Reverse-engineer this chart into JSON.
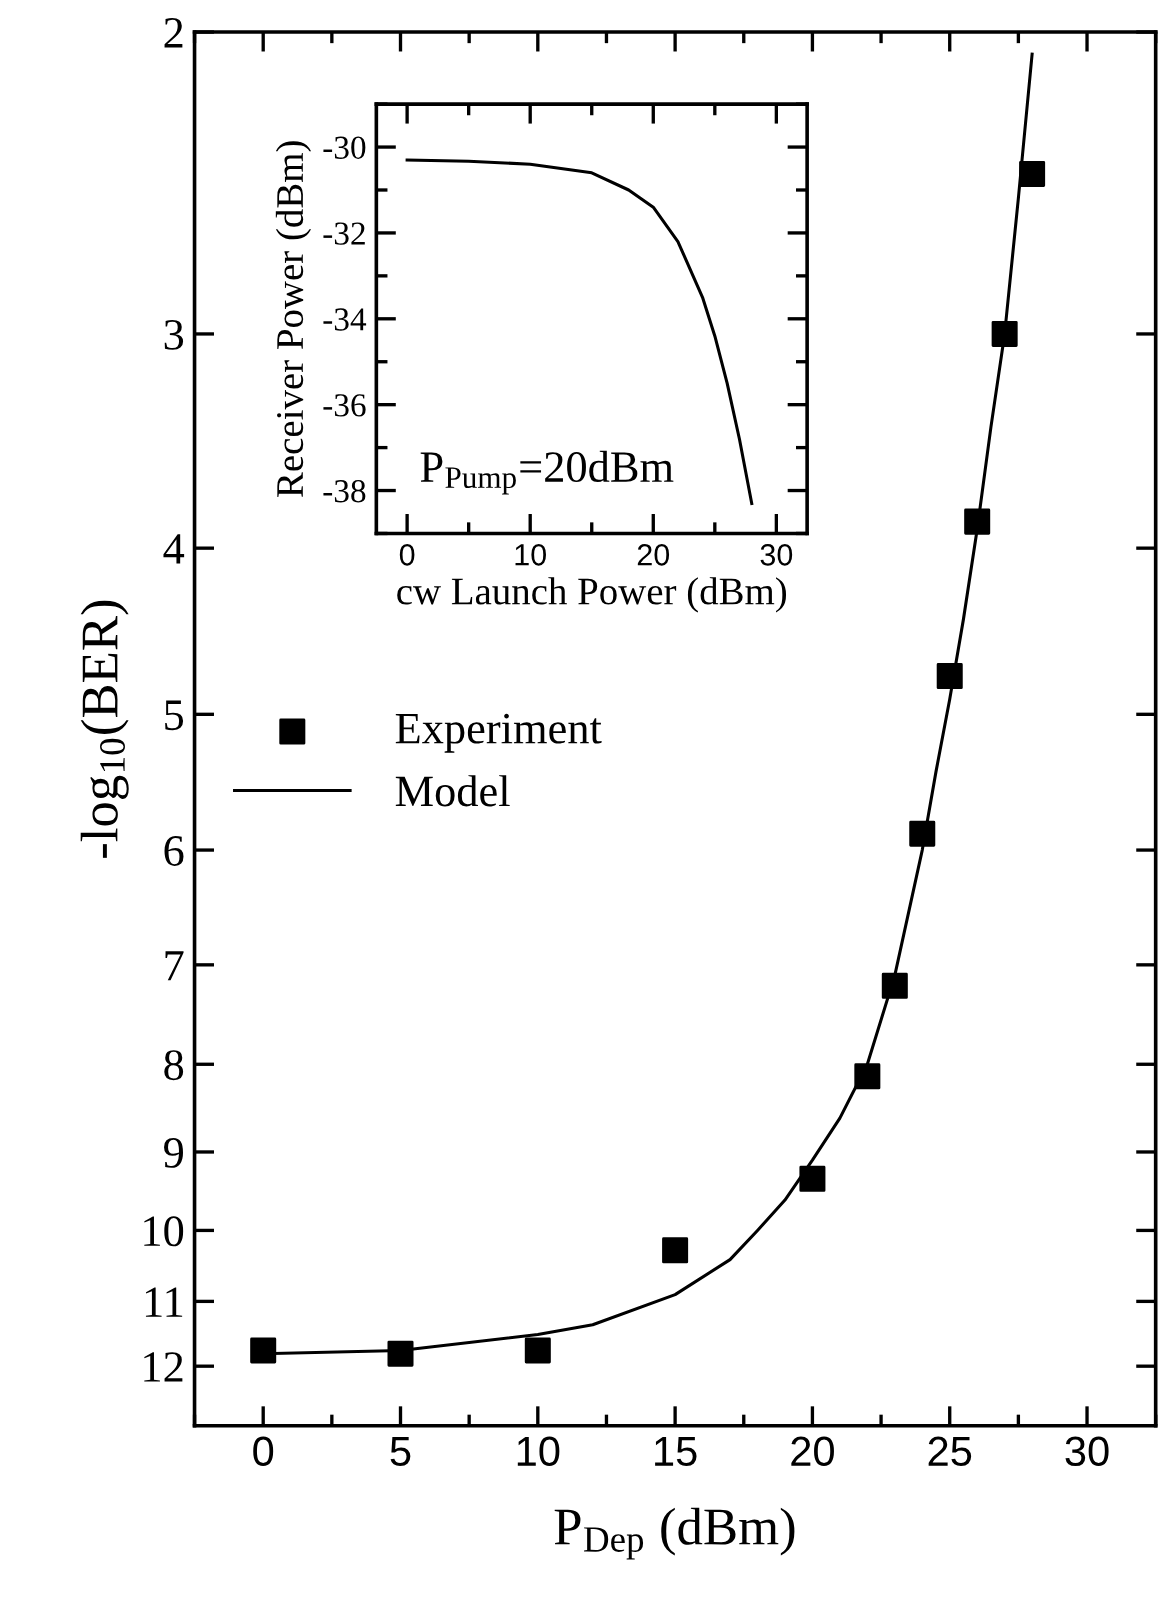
{
  "chart_data": [
    {
      "type": "scatter",
      "xlabel": "P$_{Dep}$ (dBm)",
      "ylabel": "-log$_{10}$(BER)",
      "log": "y",
      "legend": "center left",
      "xlim": [
        -2.5,
        32.5
      ],
      "ylim": [
        13,
        2
      ],
      "xticks": [
        0,
        5,
        10,
        15,
        20,
        25,
        30
      ],
      "yticks": [
        2,
        3,
        4,
        5,
        6,
        7,
        8,
        9,
        10,
        11,
        12
      ],
      "series": [
        {
          "name": "Experiment",
          "type": "scatter",
          "color": "#000000",
          "x": [
            0,
            5,
            10,
            15,
            20,
            22,
            23,
            24,
            25,
            26,
            27,
            28
          ],
          "values": [
            11.75,
            11.8,
            11.75,
            10.27,
            9.33,
            8.13,
            7.2,
            5.87,
            4.75,
            3.86,
            3.0,
            2.42
          ]
        },
        {
          "name": "Model",
          "type": "line",
          "color": "#000000",
          "x": [
            0,
            5,
            10,
            12,
            15,
            17,
            18,
            19,
            20,
            21,
            22,
            23,
            24,
            24.5,
            25,
            25.5,
            26,
            26.5,
            27,
            27.5,
            28
          ],
          "values": [
            11.8,
            11.75,
            11.5,
            11.35,
            10.9,
            10.4,
            10.0,
            9.6,
            9.1,
            8.6,
            8.0,
            7.1,
            6.0,
            5.4,
            4.9,
            4.4,
            3.9,
            3.4,
            3.0,
            2.5,
            2.06
          ]
        }
      ]
    },
    {
      "type": "line",
      "xlabel": "cw Launch Power (dBm)",
      "ylabel": "Receiver Power (dBm)",
      "annotations": [
        "P$_{Pump}$=20dBm"
      ],
      "xlim": [
        -2.5,
        32.5
      ],
      "ylim": [
        -39,
        -29
      ],
      "xticks": [
        0,
        10,
        20,
        30
      ],
      "yticks": [
        -30,
        -32,
        -34,
        -36,
        -38
      ],
      "series": [
        {
          "color": "#000000",
          "x": [
            0,
            5,
            10,
            15,
            18,
            20,
            22,
            24,
            25,
            26,
            27,
            28
          ],
          "values": [
            -30.3,
            -30.33,
            -30.4,
            -30.6,
            -31.0,
            -31.4,
            -32.2,
            -33.5,
            -34.4,
            -35.5,
            -36.8,
            -38.3
          ]
        }
      ]
    }
  ]
}
